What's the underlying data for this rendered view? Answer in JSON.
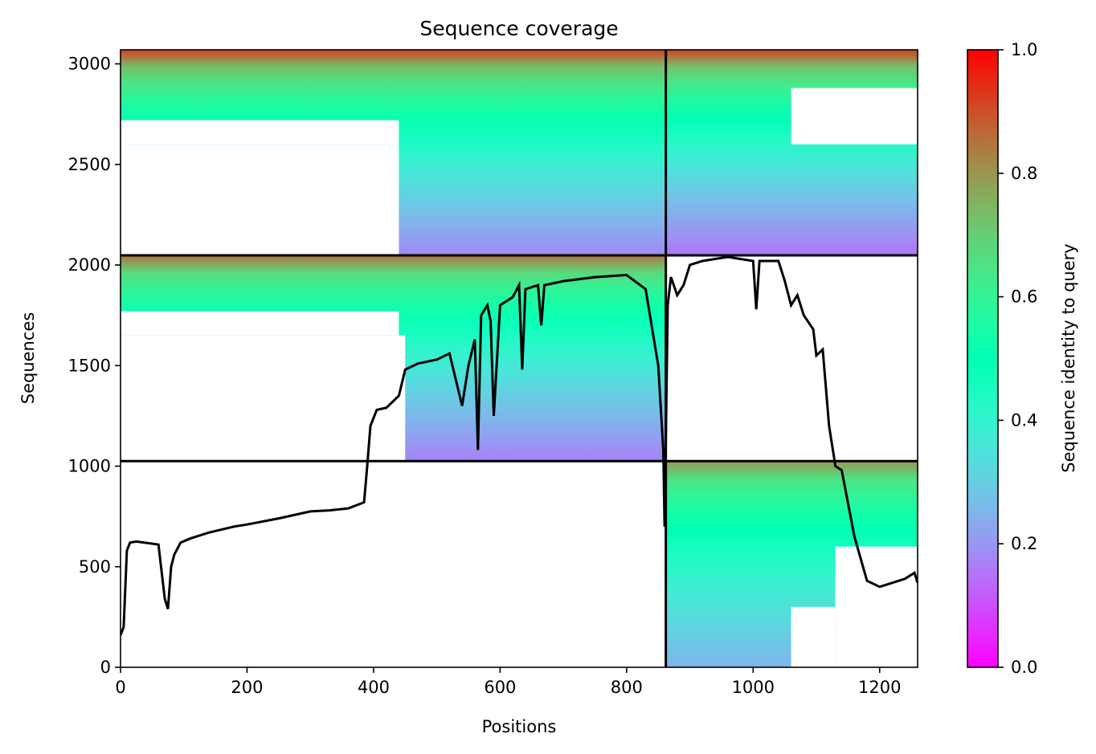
{
  "chart_data": {
    "type": "heatmap",
    "title": "Sequence coverage",
    "xlabel": "Positions",
    "ylabel": "Sequences",
    "xlim": [
      0,
      1260
    ],
    "ylim": [
      0,
      3070
    ],
    "x_ticks": [
      0,
      200,
      400,
      600,
      800,
      1000,
      1200
    ],
    "y_ticks": [
      0,
      500,
      1000,
      1500,
      2000,
      2500,
      3000
    ],
    "colorbar": {
      "label": "Sequence identity to query",
      "range": [
        0,
        1
      ],
      "ticks": [
        0.0,
        0.2,
        0.4,
        0.6,
        0.8,
        1.0
      ],
      "colormap": "rainbow"
    },
    "divider_lines": {
      "vertical_x": [
        862
      ],
      "horizontal_y": [
        1025,
        2048
      ]
    },
    "blocks": [
      {
        "name": "top-left",
        "x_range": [
          0,
          862
        ],
        "y_range": [
          2048,
          3070
        ],
        "identity_top": 0.92,
        "identity_bottom": 0.18
      },
      {
        "name": "middle-left",
        "x_range": [
          0,
          862
        ],
        "y_range": [
          1025,
          2048
        ],
        "identity_top": 0.85,
        "identity_bottom": 0.17
      },
      {
        "name": "top-right",
        "x_range": [
          862,
          1260
        ],
        "y_range": [
          2048,
          3070
        ],
        "identity_top": 0.92,
        "identity_bottom": 0.15
      },
      {
        "name": "bottom-right",
        "x_range": [
          862,
          1260
        ],
        "y_range": [
          0,
          1025
        ],
        "identity_top": 0.8,
        "identity_bottom": 0.25
      }
    ],
    "coverage_line": {
      "color": "#000000",
      "x": [
        0,
        5,
        10,
        15,
        25,
        60,
        70,
        75,
        80,
        85,
        95,
        110,
        140,
        180,
        200,
        250,
        300,
        330,
        360,
        385,
        390,
        395,
        405,
        420,
        440,
        450,
        470,
        500,
        520,
        540,
        550,
        560,
        565,
        570,
        580,
        585,
        590,
        600,
        620,
        630,
        635,
        640,
        660,
        665,
        670,
        700,
        750,
        800,
        830,
        850,
        858,
        860,
        865,
        870,
        880,
        890,
        900,
        920,
        960,
        1000,
        1005,
        1010,
        1040,
        1050,
        1060,
        1070,
        1080,
        1095,
        1100,
        1110,
        1120,
        1130,
        1140,
        1160,
        1180,
        1200,
        1220,
        1240,
        1255,
        1260
      ],
      "y": [
        160,
        200,
        580,
        620,
        625,
        610,
        340,
        290,
        500,
        560,
        620,
        640,
        670,
        700,
        710,
        740,
        775,
        780,
        790,
        820,
        1000,
        1200,
        1280,
        1290,
        1350,
        1480,
        1510,
        1530,
        1560,
        1300,
        1500,
        1630,
        1080,
        1750,
        1800,
        1720,
        1250,
        1800,
        1840,
        1900,
        1480,
        1880,
        1900,
        1700,
        1900,
        1920,
        1940,
        1950,
        1880,
        1500,
        1080,
        700,
        1800,
        1940,
        1850,
        1900,
        2000,
        2020,
        2040,
        2020,
        1780,
        2020,
        2020,
        1920,
        1800,
        1850,
        1750,
        1680,
        1550,
        1580,
        1200,
        1000,
        980,
        650,
        430,
        400,
        420,
        440,
        470,
        420
      ]
    }
  }
}
